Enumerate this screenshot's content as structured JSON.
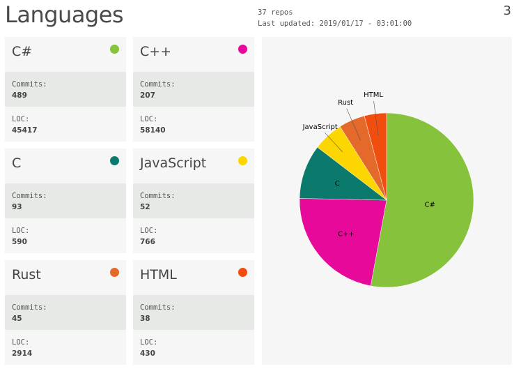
{
  "header": {
    "title": "Languages",
    "repos": "37 repos",
    "last_updated": "Last updated: 2019/01/17 - 03:01:00",
    "count": "3"
  },
  "labels": {
    "commits": "Commits:",
    "loc": "LOC:"
  },
  "languages": [
    {
      "name": "C#",
      "color": "#86c23b",
      "commits": "489",
      "loc": "45417"
    },
    {
      "name": "C++",
      "color": "#e6099a",
      "commits": "207",
      "loc": "58140"
    },
    {
      "name": "C",
      "color": "#0b7a6c",
      "commits": "93",
      "loc": "590"
    },
    {
      "name": "JavaScript",
      "color": "#fdd500",
      "commits": "52",
      "loc": "766"
    },
    {
      "name": "Rust",
      "color": "#e36a2b",
      "commits": "45",
      "loc": "2914"
    },
    {
      "name": "HTML",
      "color": "#f14d0f",
      "commits": "38",
      "loc": "430"
    }
  ],
  "chart_data": {
    "type": "pie",
    "categories": [
      "C#",
      "C++",
      "C",
      "JavaScript",
      "Rust",
      "HTML"
    ],
    "values": [
      489,
      207,
      93,
      52,
      45,
      38
    ],
    "colors": [
      "#86c23b",
      "#e6099a",
      "#0b7a6c",
      "#fdd500",
      "#e36a2b",
      "#f14d0f"
    ]
  }
}
